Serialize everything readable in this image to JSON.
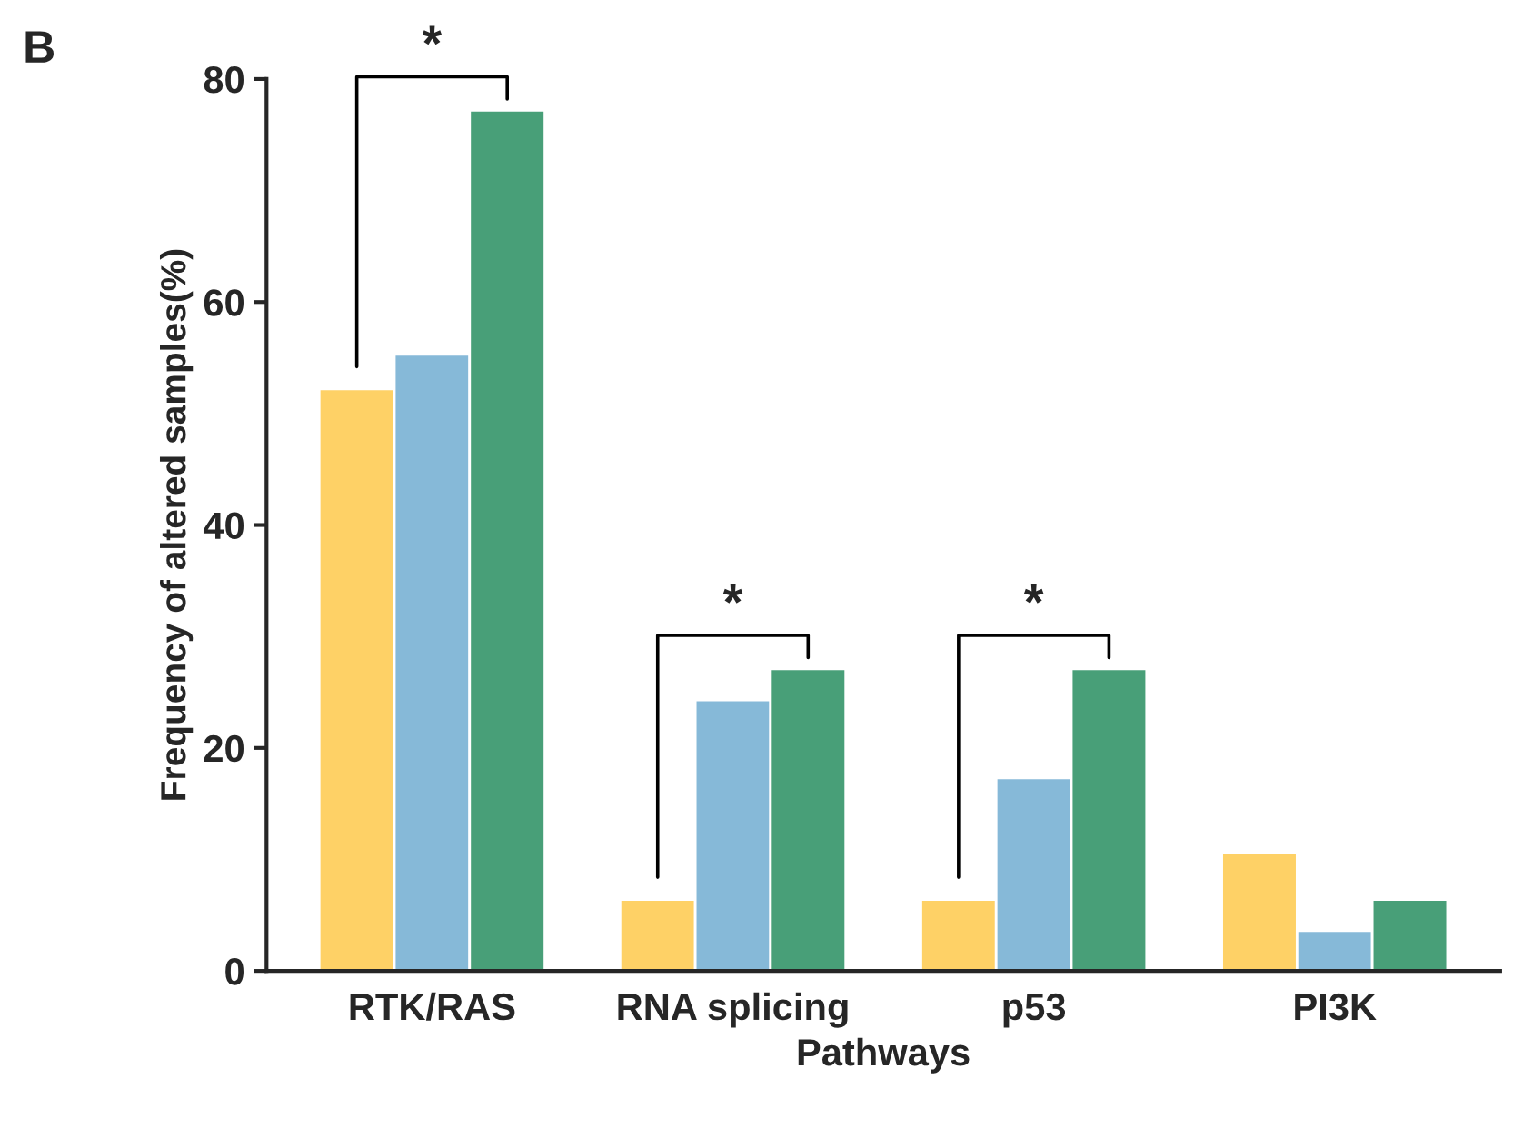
{
  "chart_data": {
    "type": "bar",
    "xlabel": "Pathways",
    "ylabel": "Frequency of altered samples(%)",
    "categories": [
      "RTK/RAS",
      "RNA splicing",
      "p53",
      "PI3K"
    ],
    "series": [
      {
        "color": "#fed166",
        "values": [
          52.2,
          6.4,
          6.4,
          10.6
        ]
      },
      {
        "color": "#86b9d8",
        "values": [
          55.3,
          24.3,
          17.3,
          3.6
        ]
      },
      {
        "color": "#489f78",
        "values": [
          77.2,
          27.1,
          27.1,
          6.4
        ]
      }
    ],
    "ylim": [
      0,
      80
    ],
    "yticks": [
      0,
      20,
      40,
      60,
      80
    ],
    "grid": false,
    "legend": false,
    "annotations": [
      "B",
      "*",
      "*",
      "*"
    ]
  }
}
